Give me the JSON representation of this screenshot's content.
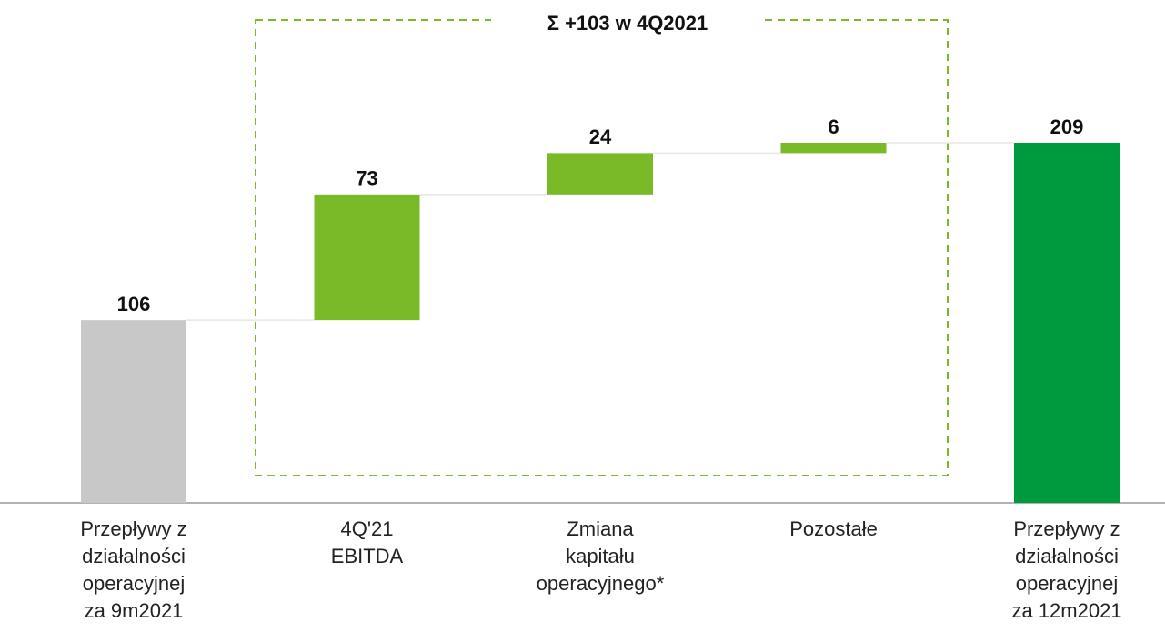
{
  "chart_data": {
    "type": "waterfall",
    "annotation": "Σ +103 w 4Q2021",
    "categories": [
      "Przepływy z\ndziałalności\noperacyjnej\nza 9m2021",
      "4Q'21\nEBITDA",
      "Zmiana\nkapitału\noperacyjnego*",
      "Pozostałe",
      "Przepływy z\ndziałalności\noperacyjnej\nza 12m2021"
    ],
    "values": [
      106,
      73,
      24,
      6,
      209
    ],
    "measure": [
      "absolute",
      "relative",
      "relative",
      "relative",
      "total"
    ],
    "colors": [
      "#c8c8c8",
      "#7aba28",
      "#7aba28",
      "#7aba28",
      "#009a3e"
    ]
  }
}
